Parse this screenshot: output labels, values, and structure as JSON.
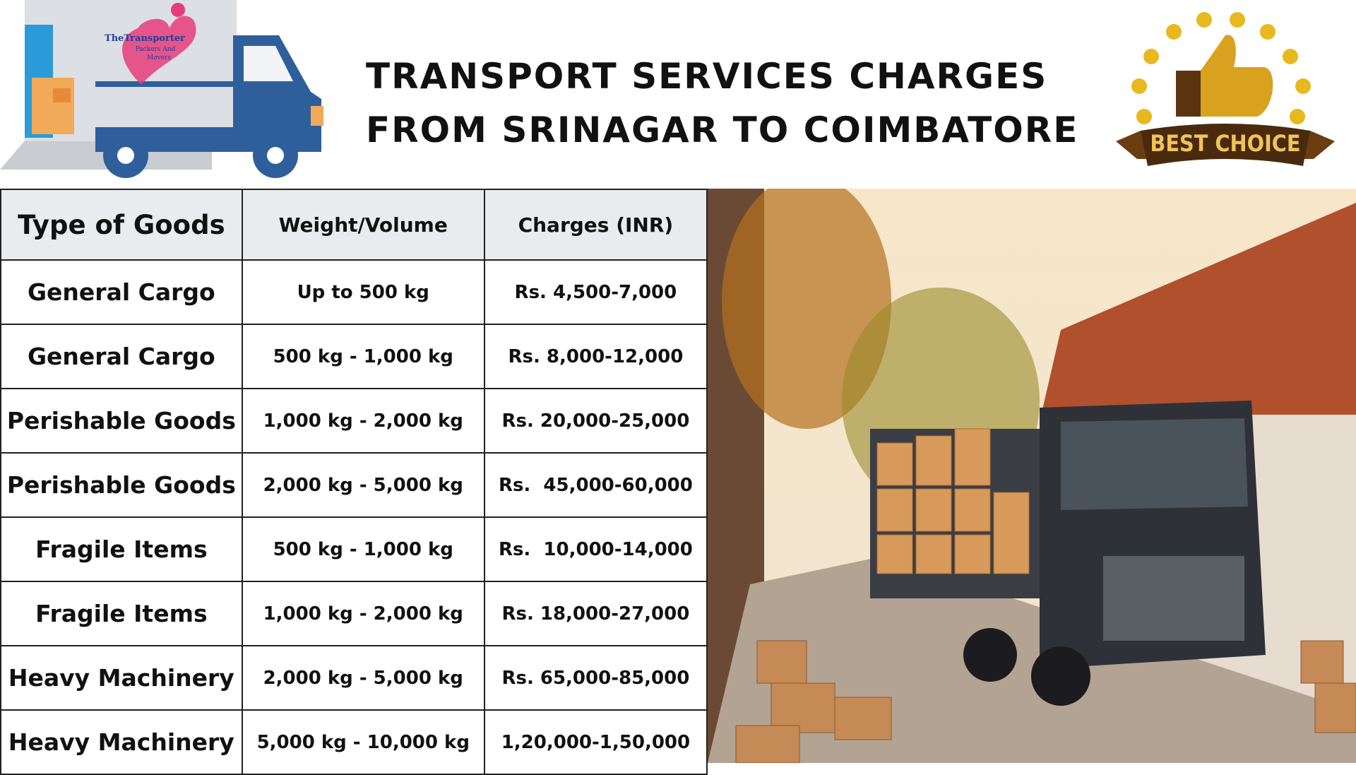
{
  "header": {
    "title_lines": [
      "TRANSPORT SERVICES CHARGES",
      "FROM SRINAGAR TO COIMBATORE"
    ],
    "logo": {
      "name": "TheTransporter",
      "sub": "Packers And",
      "sub2": "Movers"
    },
    "badge": "BEST CHOICE"
  },
  "table": {
    "columns": [
      "Type of Goods",
      "Weight/Volume",
      "Charges (INR)"
    ],
    "rows": [
      [
        "General Cargo",
        "Up to 500 kg",
        "Rs. 4,500-7,000"
      ],
      [
        "General Cargo",
        "500 kg - 1,000 kg",
        "Rs. 8,000-12,000"
      ],
      [
        "Perishable Goods",
        "1,000 kg - 2,000 kg",
        "Rs. 20,000-25,000"
      ],
      [
        "Perishable Goods",
        "2,000 kg - 5,000 kg",
        "Rs.  45,000-60,000"
      ],
      [
        "Fragile Items",
        "500 kg - 1,000 kg",
        "Rs.  10,000-14,000"
      ],
      [
        "Fragile Items",
        "1,000 kg - 2,000 kg",
        "Rs. 18,000-27,000"
      ],
      [
        "Heavy Machinery",
        "2,000 kg - 5,000 kg",
        "Rs. 65,000-85,000"
      ],
      [
        "Heavy Machinery",
        "5,000 kg - 10,000 kg",
        "1,20,000-1,50,000"
      ]
    ]
  }
}
